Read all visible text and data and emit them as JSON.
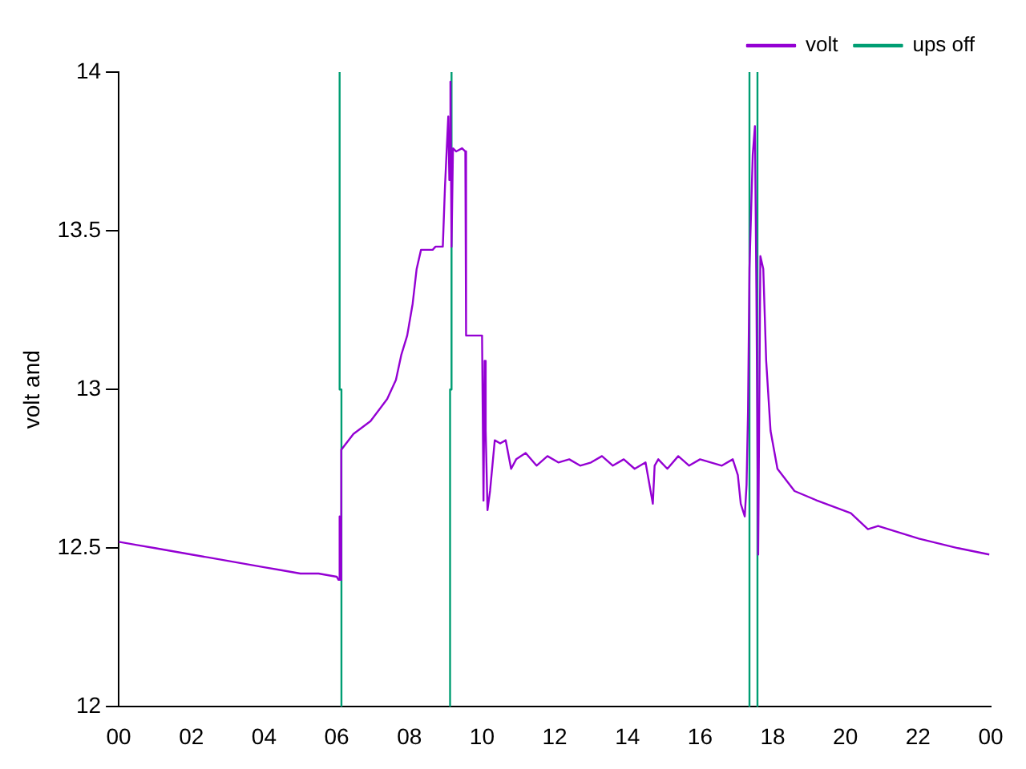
{
  "chart_data": {
    "type": "line",
    "ylabel": "volt and",
    "xlim": [
      0,
      24
    ],
    "ylim": [
      12,
      14
    ],
    "xticks": [
      {
        "value": 0,
        "label": "00"
      },
      {
        "value": 2,
        "label": "02"
      },
      {
        "value": 4,
        "label": "04"
      },
      {
        "value": 6,
        "label": "06"
      },
      {
        "value": 8,
        "label": "08"
      },
      {
        "value": 10,
        "label": "10"
      },
      {
        "value": 12,
        "label": "12"
      },
      {
        "value": 14,
        "label": "14"
      },
      {
        "value": 16,
        "label": "16"
      },
      {
        "value": 18,
        "label": "18"
      },
      {
        "value": 20,
        "label": "20"
      },
      {
        "value": 22,
        "label": "22"
      },
      {
        "value": 24,
        "label": "00"
      }
    ],
    "yticks": [
      12,
      12.5,
      13,
      13.5,
      14
    ],
    "grid": false,
    "legend": "top right",
    "marker": "none",
    "line_style": "solid",
    "series": [
      {
        "name": "volt",
        "color": "#9400d3",
        "x": [
          0,
          0.5,
          1,
          1.5,
          2,
          2.5,
          3,
          3.5,
          4,
          4.5,
          5,
          5.5,
          6.0,
          6.05,
          6.08,
          6.1,
          6.12,
          6.13,
          6.46,
          6.93,
          7.39,
          7.63,
          7.78,
          7.94,
          8.09,
          8.2,
          8.32,
          8.64,
          8.72,
          8.92,
          8.98,
          9.07,
          9.1,
          9.13,
          9.16,
          9.2,
          9.29,
          9.45,
          9.54,
          9.56,
          10.0,
          10.04,
          10.07,
          10.1,
          10.15,
          10.22,
          10.35,
          10.5,
          10.65,
          10.8,
          10.94,
          11.2,
          11.5,
          11.8,
          12.1,
          12.4,
          12.7,
          13.0,
          13.3,
          13.6,
          13.9,
          14.2,
          14.5,
          14.7,
          14.75,
          14.85,
          15.1,
          15.4,
          15.7,
          16.0,
          16.3,
          16.6,
          16.9,
          17.04,
          17.12,
          17.23,
          17.28,
          17.32,
          17.36,
          17.45,
          17.51,
          17.55,
          17.6,
          17.66,
          17.74,
          17.82,
          17.94,
          18.13,
          18.6,
          19.22,
          20.15,
          20.62,
          20.9,
          22.02,
          23.1,
          23.96
        ],
        "values": [
          12.52,
          12.51,
          12.5,
          12.49,
          12.48,
          12.47,
          12.46,
          12.45,
          12.44,
          12.43,
          12.42,
          12.42,
          12.41,
          12.4,
          12.6,
          12.4,
          12.41,
          12.81,
          12.86,
          12.9,
          12.97,
          13.03,
          13.11,
          13.17,
          13.27,
          13.38,
          13.44,
          13.44,
          13.45,
          13.45,
          13.64,
          13.86,
          13.66,
          13.97,
          13.45,
          13.76,
          13.75,
          13.76,
          13.75,
          13.17,
          13.17,
          12.65,
          13.09,
          12.87,
          12.62,
          12.68,
          12.84,
          12.83,
          12.84,
          12.75,
          12.78,
          12.8,
          12.76,
          12.79,
          12.77,
          12.78,
          12.76,
          12.77,
          12.79,
          12.76,
          12.78,
          12.75,
          12.77,
          12.64,
          12.76,
          12.78,
          12.75,
          12.79,
          12.76,
          12.78,
          12.77,
          12.76,
          12.78,
          12.73,
          12.64,
          12.6,
          12.7,
          12.93,
          13.38,
          13.74,
          13.83,
          13.32,
          12.48,
          13.42,
          13.38,
          13.09,
          12.87,
          12.75,
          12.68,
          12.65,
          12.61,
          12.56,
          12.57,
          12.53,
          12.5,
          12.48
        ]
      },
      {
        "name": "ups off",
        "color": "#009e73",
        "x": [
          6.13,
          6.13,
          6.08,
          6.08,
          null,
          9.12,
          9.12,
          9.16,
          9.16,
          null,
          17.36,
          17.36,
          null,
          17.58,
          17.58
        ],
        "values": [
          12,
          13,
          13,
          14,
          null,
          12,
          13,
          13,
          14,
          null,
          14,
          12,
          null,
          14,
          12
        ]
      }
    ]
  }
}
